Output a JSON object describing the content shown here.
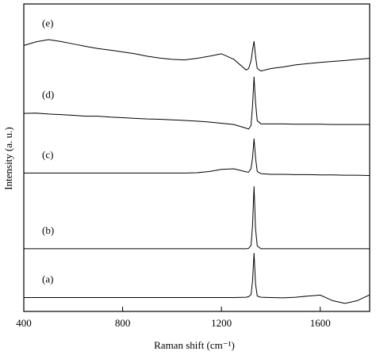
{
  "chart_data": {
    "type": "line",
    "xlabel": "Raman shift (cm⁻¹)",
    "ylabel": "Intensity (a. u.)",
    "xlim": [
      400,
      1800
    ],
    "ylim": [
      0,
      100
    ],
    "xticks": [
      400,
      800,
      1200,
      1600
    ],
    "grid": false,
    "x": [
      400,
      450,
      500,
      550,
      600,
      650,
      700,
      750,
      800,
      850,
      900,
      950,
      1000,
      1050,
      1100,
      1150,
      1200,
      1250,
      1300,
      1310,
      1320,
      1326,
      1332,
      1338,
      1345,
      1360,
      1400,
      1450,
      1500,
      1550,
      1600,
      1650,
      1700,
      1750,
      1800
    ],
    "series": [
      {
        "name": "(a)",
        "color": "#000000",
        "values": [
          4.5,
          4.5,
          4.5,
          4.5,
          4.5,
          4.5,
          4.5,
          4.5,
          4.5,
          4.5,
          4.5,
          4.5,
          4.5,
          4.5,
          4.5,
          4.5,
          4.5,
          4.5,
          4.6,
          4.8,
          5.5,
          10,
          19,
          9,
          5,
          4.6,
          4.5,
          4.4,
          4.6,
          5.0,
          5.3,
          3.5,
          2.6,
          3.5,
          5.4
        ]
      },
      {
        "name": "(b)",
        "color": "#000000",
        "values": [
          20.4,
          20.4,
          20.4,
          20.4,
          20.4,
          20.4,
          20.4,
          20.4,
          20.4,
          20.4,
          20.4,
          20.4,
          20.4,
          20.4,
          20.4,
          20.4,
          20.4,
          20.4,
          20.4,
          20.5,
          21.5,
          28,
          40.7,
          27,
          21.3,
          20.4,
          20.4,
          20.4,
          20.4,
          20.4,
          20.4,
          20.4,
          20.4,
          20.4,
          20.4
        ]
      },
      {
        "name": "(c)",
        "color": "#000000",
        "values": [
          45.0,
          45.0,
          45.0,
          45.0,
          45.0,
          45.0,
          45.0,
          45.0,
          45.0,
          45.0,
          45.0,
          45.0,
          45.0,
          45.0,
          45.1,
          45.5,
          46.2,
          46.4,
          45.4,
          45.3,
          46.5,
          50,
          56.2,
          50,
          45.5,
          44.8,
          44.6,
          44.6,
          44.5,
          44.5,
          44.4,
          44.4,
          44.3,
          44.3,
          44.2
        ]
      },
      {
        "name": "(d)",
        "color": "#000000",
        "values": [
          64.4,
          64.5,
          64.2,
          64.0,
          63.8,
          63.5,
          63.5,
          63.2,
          63.0,
          62.8,
          62.6,
          62.5,
          62.3,
          62.1,
          61.9,
          61.6,
          61.2,
          60.8,
          59.6,
          59.3,
          60.5,
          67,
          76.3,
          68,
          62,
          61,
          61,
          61,
          60.9,
          60.9,
          60.9,
          60.8,
          60.8,
          60.8,
          60.8
        ]
      },
      {
        "name": "(e)",
        "color": "#000000",
        "values": [
          86.5,
          87.7,
          88.4,
          87.8,
          87.0,
          86.2,
          85.5,
          85.0,
          84.4,
          83.8,
          83.0,
          82.4,
          82.0,
          81.8,
          82.3,
          83.0,
          83.8,
          82.0,
          78.5,
          79.0,
          81.5,
          85,
          87.9,
          83,
          79,
          78.2,
          79,
          79.5,
          80.2,
          80.6,
          81,
          81.3,
          81.6,
          82,
          82.3
        ]
      }
    ]
  }
}
